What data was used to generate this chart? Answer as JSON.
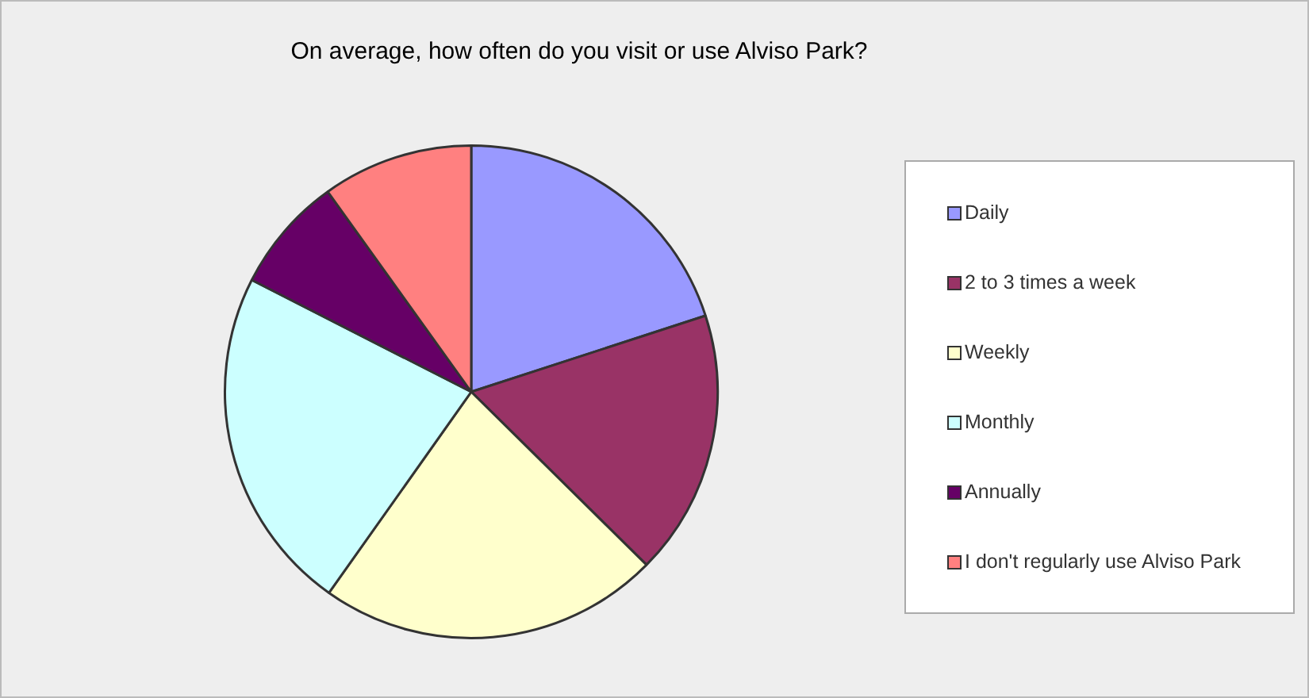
{
  "chart_data": {
    "type": "pie",
    "title": "On average, how often do you visit or use Alviso Park?",
    "categories": [
      "Daily",
      "2 to 3 times a week",
      "Weekly",
      "Monthly",
      "Annually",
      "I don't regularly use Alviso Park"
    ],
    "values": [
      20,
      17.4,
      22.4,
      22.7,
      7.6,
      9.9
    ],
    "colors": [
      "#9999ff",
      "#993366",
      "#ffffcc",
      "#ccffff",
      "#660066",
      "#ff8080"
    ],
    "legend": "right"
  }
}
